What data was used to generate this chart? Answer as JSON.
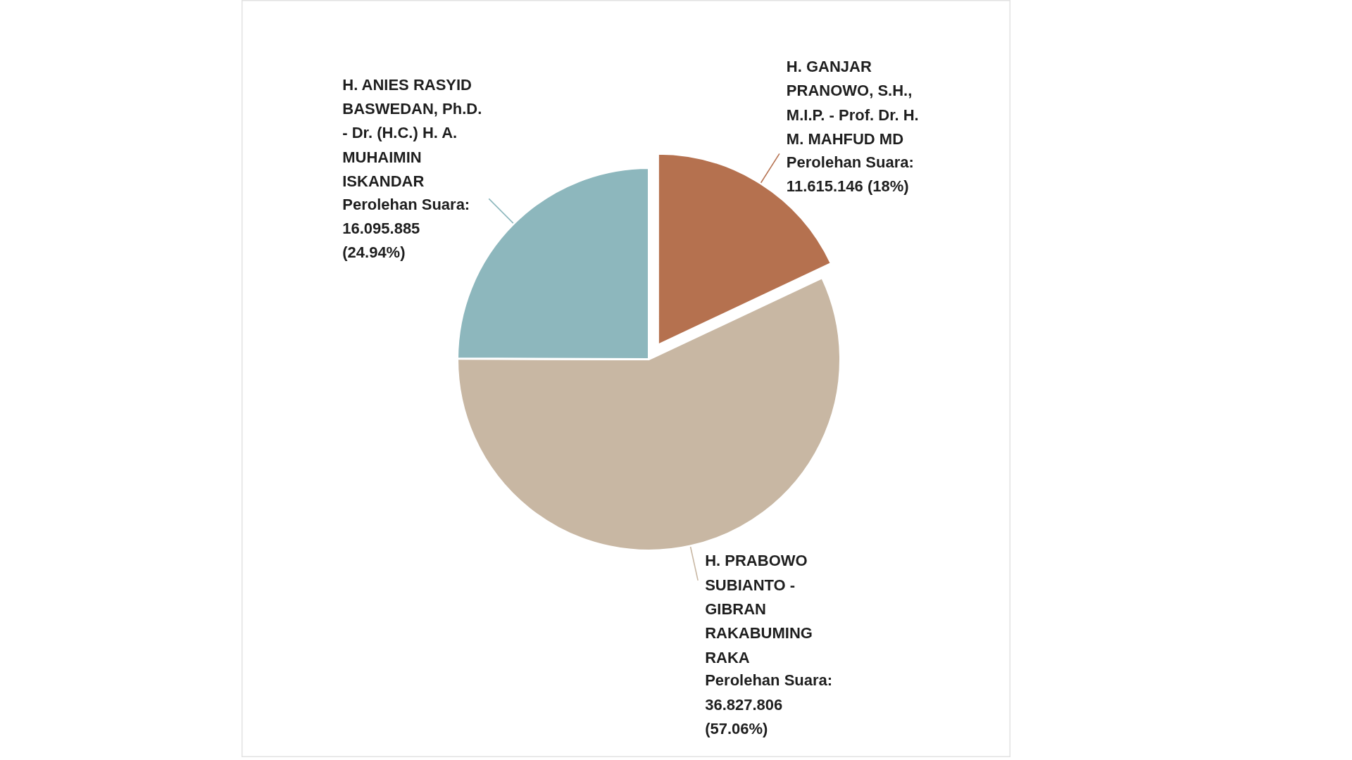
{
  "chart_data": {
    "type": "pie",
    "categories": [
      "H. GANJAR PRANOWO, S.H., M.I.P. - Prof. Dr. H. M. MAHFUD MD",
      "H. PRABOWO SUBIANTO - GIBRAN RAKABUMING RAKA",
      "H. ANIES RASYID BASWEDAN, Ph.D. - Dr. (H.C.) H. A. MUHAIMIN ISKANDAR"
    ],
    "values": [
      11615146,
      36827806,
      16095885
    ],
    "colors": [
      "#b5714f",
      "#c8b7a3",
      "#8db7bd"
    ],
    "value_labels": [
      "Perolehan Suara: 11.615.146 (18%)",
      "Perolehan Suara: 36.827.806 (57.06%)",
      "Perolehan Suara: 16.095.885 (24.94%)"
    ]
  }
}
